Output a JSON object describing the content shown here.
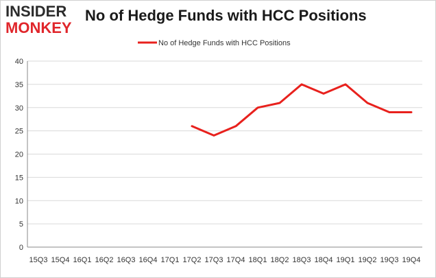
{
  "logo": {
    "line1": "INSIDER",
    "line2": "MONKEY"
  },
  "colors": {
    "series": "#e8211d",
    "grid": "#d9d9d9",
    "axis": "#888888",
    "logo_dark": "#2b2b2b",
    "logo_red": "#e0262b"
  },
  "chart_data": {
    "type": "line",
    "title": "No of Hedge Funds with HCC Positions",
    "categories": [
      "15Q3",
      "15Q4",
      "16Q1",
      "16Q2",
      "16Q3",
      "16Q4",
      "17Q1",
      "17Q2",
      "17Q3",
      "17Q4",
      "18Q1",
      "18Q2",
      "18Q3",
      "18Q4",
      "19Q1",
      "19Q2",
      "19Q3",
      "19Q4"
    ],
    "series": [
      {
        "name": "No of Hedge Funds with HCC Positions",
        "values": [
          null,
          null,
          null,
          null,
          null,
          null,
          null,
          26,
          24,
          26,
          30,
          31,
          35,
          33,
          35,
          31,
          29,
          29
        ]
      }
    ],
    "ylim": [
      0,
      40
    ],
    "yticks": [
      0,
      5,
      10,
      15,
      20,
      25,
      30,
      35,
      40
    ],
    "grid": true,
    "legend": "top-center"
  }
}
